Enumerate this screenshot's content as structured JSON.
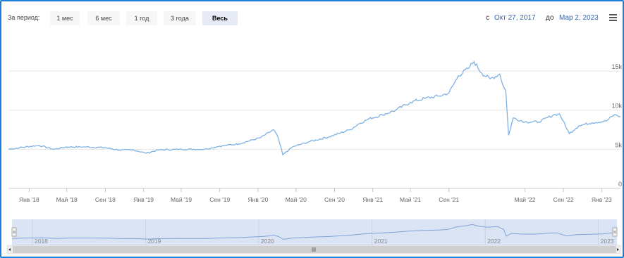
{
  "toolbar": {
    "period_label": "За период:",
    "ranges": [
      {
        "label": "1 мес",
        "active": false
      },
      {
        "label": "6 мес",
        "active": false
      },
      {
        "label": "1 год",
        "active": false
      },
      {
        "label": "3 года",
        "active": false
      },
      {
        "label": "Весь",
        "active": true
      }
    ],
    "from_prefix": "с",
    "from_date": "Окт 27, 2017",
    "to_prefix": "до",
    "to_date": "Мар 2, 2023"
  },
  "icons": {
    "menu": "hamburger-menu-icon",
    "scroll_left": "arrow-left-icon",
    "scroll_right": "arrow-right-icon",
    "scroll_grip": "grip-icon"
  },
  "colors": {
    "line": "#7fb2e5",
    "navigator_fill": "#dbe4f5",
    "accent": "#1f7fd6"
  },
  "chart_data": {
    "type": "line",
    "title": "",
    "xlabel": "",
    "ylabel": "",
    "x_range": [
      "2017-10-27",
      "2023-03-02"
    ],
    "ylim": [
      0,
      17000
    ],
    "y_ticks": [
      "0",
      "5k",
      "10k",
      "15k"
    ],
    "x_tick_labels": [
      "Янв '18",
      "Май '18",
      "Сен '18",
      "Янв '19",
      "Май '19",
      "Сен '19",
      "Янв '20",
      "Май '20",
      "Сен '20",
      "Янв '21",
      "Май '21",
      "Сен '21",
      "Май '22",
      "Сен '22",
      "Янв '23"
    ],
    "navigator_labels": [
      "2018",
      "2019",
      "2020",
      "2021",
      "2022",
      "2023"
    ],
    "grid": true,
    "series": [
      {
        "values": [
          [
            "2017-10-27",
            5000
          ],
          [
            "2017-12-01",
            5200
          ],
          [
            "2018-02-01",
            5500
          ],
          [
            "2018-03-20",
            5000
          ],
          [
            "2018-05-01",
            5300
          ],
          [
            "2018-07-01",
            5300
          ],
          [
            "2018-09-01",
            5200
          ],
          [
            "2018-10-15",
            4900
          ],
          [
            "2018-12-01",
            4900
          ],
          [
            "2019-01-10",
            4500
          ],
          [
            "2019-02-15",
            4900
          ],
          [
            "2019-05-01",
            5000
          ],
          [
            "2019-07-15",
            5000
          ],
          [
            "2019-09-01",
            5400
          ],
          [
            "2019-11-01",
            5700
          ],
          [
            "2020-01-10",
            6500
          ],
          [
            "2020-02-20",
            7500
          ],
          [
            "2020-03-05",
            6500
          ],
          [
            "2020-03-20",
            4300
          ],
          [
            "2020-04-20",
            5300
          ],
          [
            "2020-06-15",
            6000
          ],
          [
            "2020-08-15",
            6600
          ],
          [
            "2020-10-20",
            7500
          ],
          [
            "2020-11-20",
            8300
          ],
          [
            "2020-12-20",
            8900
          ],
          [
            "2021-02-01",
            9400
          ],
          [
            "2021-03-15",
            10000
          ],
          [
            "2021-05-01",
            11000
          ],
          [
            "2021-06-15",
            11500
          ],
          [
            "2021-08-01",
            11800
          ],
          [
            "2021-09-01",
            12200
          ],
          [
            "2021-10-01",
            14400
          ],
          [
            "2021-11-01",
            15300
          ],
          [
            "2021-11-20",
            16200
          ],
          [
            "2021-12-15",
            14700
          ],
          [
            "2022-01-10",
            14000
          ],
          [
            "2022-02-10",
            14600
          ],
          [
            "2022-02-22",
            13000
          ],
          [
            "2022-03-01",
            12500
          ],
          [
            "2022-03-10",
            6800
          ],
          [
            "2022-03-25",
            9000
          ],
          [
            "2022-05-01",
            8500
          ],
          [
            "2022-06-15",
            8500
          ],
          [
            "2022-08-01",
            9400
          ],
          [
            "2022-08-20",
            9500
          ],
          [
            "2022-09-20",
            7000
          ],
          [
            "2022-10-20",
            8000
          ],
          [
            "2022-12-01",
            8400
          ],
          [
            "2023-01-15",
            8600
          ],
          [
            "2023-02-10",
            9400
          ],
          [
            "2023-03-02",
            9200
          ]
        ]
      }
    ]
  }
}
